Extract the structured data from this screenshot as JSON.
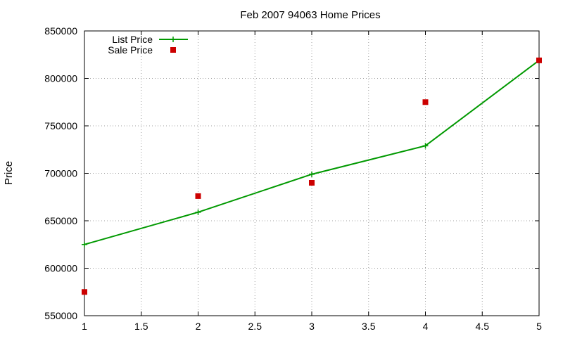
{
  "chart_data": {
    "type": "line",
    "title": "Feb 2007 94063 Home Prices",
    "xlabel": "",
    "ylabel": "Price",
    "xlim": [
      1,
      5
    ],
    "ylim": [
      550000,
      850000
    ],
    "xticks": [
      1,
      1.5,
      2,
      2.5,
      3,
      3.5,
      4,
      4.5,
      5
    ],
    "xtick_labels": [
      "1",
      "1.5",
      "2",
      "2.5",
      "3",
      "3.5",
      "4",
      "4.5",
      "5"
    ],
    "yticks": [
      550000,
      600000,
      650000,
      700000,
      750000,
      800000,
      850000
    ],
    "ytick_labels": [
      "550000",
      "600000",
      "650000",
      "700000",
      "750000",
      "800000",
      "850000"
    ],
    "grid": true,
    "legend_position": "top-left",
    "series": [
      {
        "name": "List Price",
        "kind": "line",
        "marker": "plus",
        "color": "#009900",
        "x": [
          1,
          2,
          3,
          4,
          5
        ],
        "y": [
          625000,
          659000,
          699000,
          729000,
          819000
        ]
      },
      {
        "name": "Sale Price",
        "kind": "points",
        "marker": "square",
        "color": "#cc0000",
        "x": [
          1,
          2,
          3,
          4,
          5
        ],
        "y": [
          575000,
          676000,
          690000,
          775000,
          819000
        ]
      }
    ]
  }
}
